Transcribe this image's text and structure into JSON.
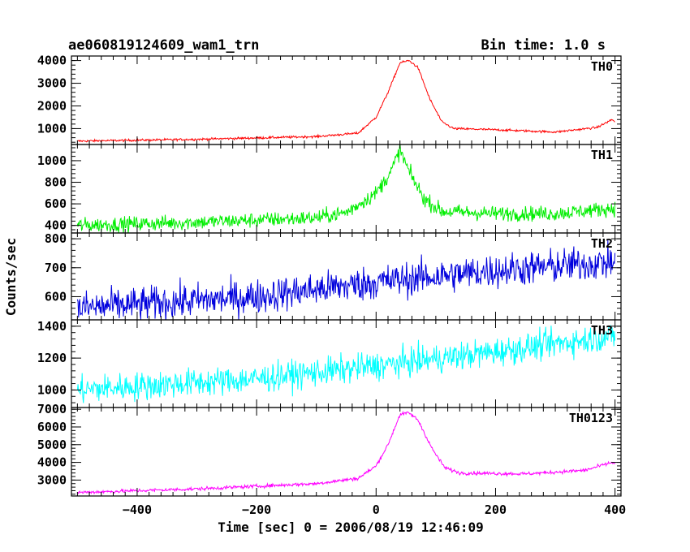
{
  "chart_data": {
    "type": "line",
    "title": "ae060819124609_wam1_trn",
    "bin_time_label": "Bin time: 1.0 s",
    "xlabel": "Time [sec] 0 = 2006/08/19 12:46:09",
    "ylabel": "Counts/sec",
    "xlim": [
      -510,
      410
    ],
    "xticks": [
      -400,
      -200,
      0,
      200,
      400
    ],
    "xtick_labels": [
      "−400",
      "−200",
      "0",
      "200",
      "400"
    ],
    "panels": [
      {
        "name": "TH0",
        "color": "#ff0000",
        "ylim": [
          300,
          4200
        ],
        "yticks": [
          1000,
          2000,
          3000,
          4000
        ],
        "ytick_labels": [
          "1000",
          "2000",
          "3000",
          "4000"
        ],
        "noise": 25,
        "curve": [
          [
            -500,
            450
          ],
          [
            -300,
            530
          ],
          [
            -100,
            650
          ],
          [
            -30,
            800
          ],
          [
            0,
            1500
          ],
          [
            20,
            2600
          ],
          [
            40,
            3900
          ],
          [
            55,
            4000
          ],
          [
            70,
            3700
          ],
          [
            90,
            2300
          ],
          [
            110,
            1300
          ],
          [
            130,
            1000
          ],
          [
            200,
            950
          ],
          [
            300,
            850
          ],
          [
            370,
            1050
          ],
          [
            395,
            1400
          ],
          [
            400,
            1300
          ]
        ]
      },
      {
        "name": "TH1",
        "color": "#00ee00",
        "ylim": [
          330,
          1150
        ],
        "yticks": [
          400,
          600,
          800,
          1000
        ],
        "ytick_labels": [
          "400",
          "600",
          "800",
          "1000"
        ],
        "noise": 35,
        "curve": [
          [
            -500,
            400
          ],
          [
            -300,
            430
          ],
          [
            -100,
            470
          ],
          [
            -50,
            520
          ],
          [
            0,
            700
          ],
          [
            25,
            900
          ],
          [
            40,
            1100
          ],
          [
            55,
            900
          ],
          [
            80,
            650
          ],
          [
            110,
            530
          ],
          [
            200,
            510
          ],
          [
            300,
            510
          ],
          [
            400,
            560
          ]
        ]
      },
      {
        "name": "TH2",
        "color": "#0000dd",
        "ylim": [
          520,
          820
        ],
        "yticks": [
          600,
          700,
          800
        ],
        "ytick_labels": [
          "600",
          "700",
          "800"
        ],
        "noise": 30,
        "curve": [
          [
            -500,
            560
          ],
          [
            -200,
            600
          ],
          [
            0,
            650
          ],
          [
            200,
            690
          ],
          [
            400,
            720
          ]
        ]
      },
      {
        "name": "TH3",
        "color": "#00ffff",
        "ylim": [
          890,
          1440
        ],
        "yticks": [
          1000,
          1200,
          1400
        ],
        "ytick_labels": [
          "1000",
          "1200",
          "1400"
        ],
        "noise": 45,
        "curve": [
          [
            -500,
            1000
          ],
          [
            -200,
            1070
          ],
          [
            0,
            1150
          ],
          [
            200,
            1240
          ],
          [
            400,
            1340
          ]
        ]
      },
      {
        "name": "TH0123",
        "color": "#ff00ff",
        "ylim": [
          2100,
          7100
        ],
        "yticks": [
          3000,
          4000,
          5000,
          6000,
          7000
        ],
        "ytick_labels": [
          "3000",
          "4000",
          "5000",
          "6000",
          "7000"
        ],
        "noise": 50,
        "curve": [
          [
            -500,
            2300
          ],
          [
            -300,
            2500
          ],
          [
            -100,
            2800
          ],
          [
            -30,
            3100
          ],
          [
            0,
            3800
          ],
          [
            20,
            5000
          ],
          [
            40,
            6700
          ],
          [
            55,
            6800
          ],
          [
            70,
            6400
          ],
          [
            95,
            4700
          ],
          [
            115,
            3700
          ],
          [
            140,
            3400
          ],
          [
            250,
            3350
          ],
          [
            350,
            3550
          ],
          [
            395,
            4000
          ],
          [
            400,
            3900
          ]
        ]
      }
    ]
  }
}
